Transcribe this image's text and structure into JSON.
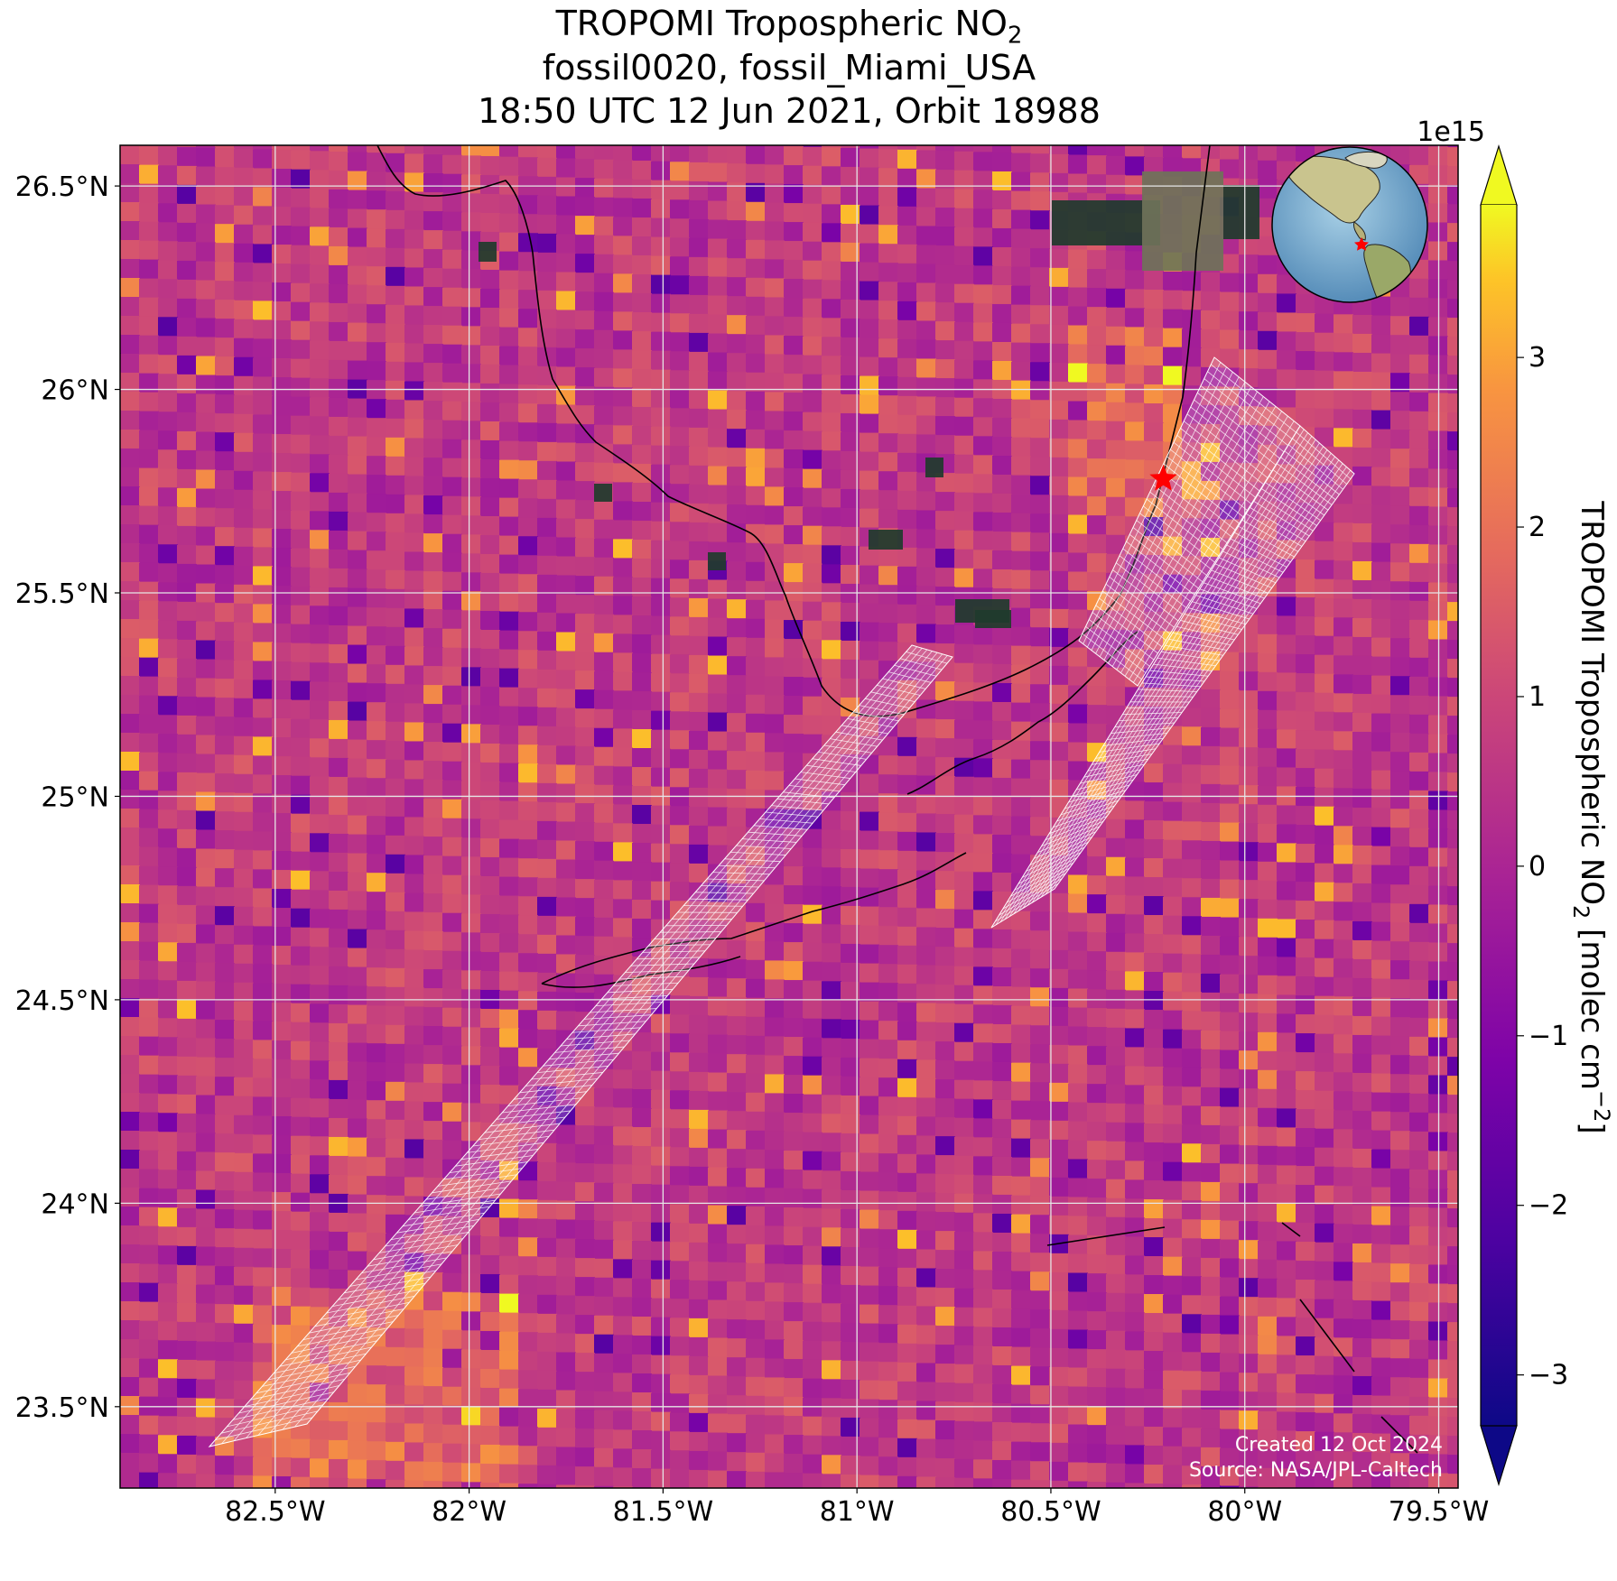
{
  "title": {
    "line1_prefix": "TROPOMI Tropospheric NO",
    "line1_sub": "2",
    "line2": "fossil0020, fossil_Miami_USA",
    "line3": "18:50 UTC 12 Jun 2021, Orbit 18988"
  },
  "axes": {
    "x_ticks": [
      {
        "lon": -82.5,
        "label": "82.5°W"
      },
      {
        "lon": -82.0,
        "label": "82°W"
      },
      {
        "lon": -81.5,
        "label": "81.5°W"
      },
      {
        "lon": -81.0,
        "label": "81°W"
      },
      {
        "lon": -80.5,
        "label": "80.5°W"
      },
      {
        "lon": -80.0,
        "label": "80°W"
      },
      {
        "lon": -79.5,
        "label": "79.5°W"
      }
    ],
    "y_ticks": [
      {
        "lat": 26.5,
        "label": "26.5°N"
      },
      {
        "lat": 26.0,
        "label": "26°N"
      },
      {
        "lat": 25.5,
        "label": "25.5°N"
      },
      {
        "lat": 25.0,
        "label": "25°N"
      },
      {
        "lat": 24.5,
        "label": "24.5°N"
      },
      {
        "lat": 24.0,
        "label": "24°N"
      },
      {
        "lat": 23.5,
        "label": "23.5°N"
      }
    ],
    "lon_range": [
      -82.9,
      -79.45
    ],
    "lat_range": [
      23.3,
      26.6
    ],
    "grid": true
  },
  "colorbar": {
    "label_prefix": "TROPOMI Tropospheric NO",
    "label_sub": "2",
    "label_suffix": " [molec cm",
    "label_sup": "−2",
    "label_end": "]",
    "multiplier": "1e15",
    "colormap": "plasma",
    "range": [
      -3.3,
      3.9
    ],
    "extend": "both",
    "ticks": [
      {
        "value": 3,
        "label": "3"
      },
      {
        "value": 2,
        "label": "2"
      },
      {
        "value": 1,
        "label": "1"
      },
      {
        "value": 0,
        "label": "0"
      },
      {
        "value": -1,
        "label": "−1"
      },
      {
        "value": -2,
        "label": "−2"
      },
      {
        "value": -3,
        "label": "−3"
      }
    ]
  },
  "target": {
    "name": "fossil_Miami_USA",
    "lon": -80.21,
    "lat": 25.78,
    "marker": "red-star",
    "color": "#ff0000"
  },
  "credits": {
    "created": "Created 12 Oct 2024",
    "source": "Source: NASA/JPL-Caltech"
  },
  "colors": {
    "grid": "#e6e6e6",
    "coast": "#000000",
    "oco_footprint": "#ffffff",
    "star": "#ff0000"
  }
}
